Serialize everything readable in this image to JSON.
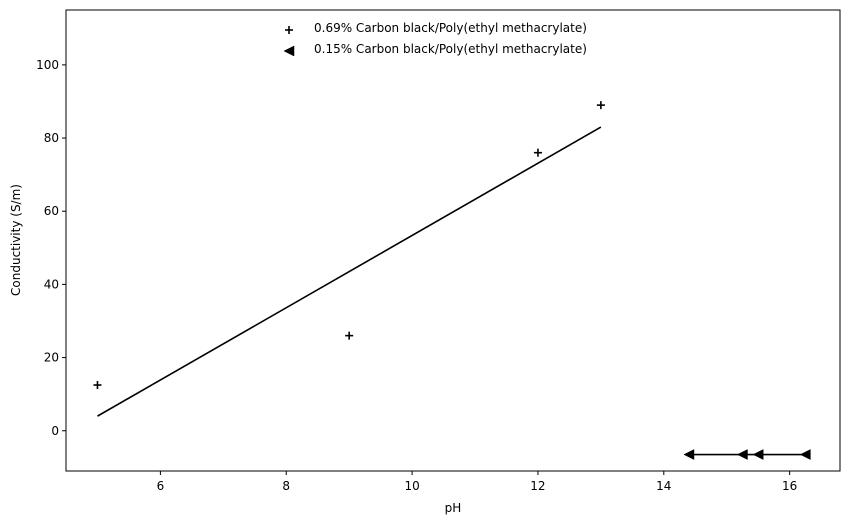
{
  "chart_data": {
    "type": "scatter",
    "title": "",
    "xlabel": "pH",
    "ylabel": "Conductivity (S/m)",
    "xlim": [
      4.5,
      16.8
    ],
    "ylim": [
      -11,
      115
    ],
    "x_ticks": [
      6,
      8,
      10,
      12,
      14,
      16
    ],
    "y_ticks": [
      0,
      20,
      40,
      60,
      80,
      100
    ],
    "grid": false,
    "legend_position": "top-center",
    "series": [
      {
        "name": "0.69% Carbon black/Poly(ethyl methacrylate)",
        "marker": "plus",
        "color": "#000000",
        "points": [
          {
            "x": 5,
            "y": 12.5
          },
          {
            "x": 9,
            "y": 26
          },
          {
            "x": 12,
            "y": 76
          },
          {
            "x": 13,
            "y": 89
          }
        ],
        "fit_line": {
          "x": [
            5,
            13
          ],
          "y": [
            4,
            83
          ]
        }
      },
      {
        "name": "0.15% Carbon black/Poly(ethyl methacrylate)",
        "marker": "triangle-left",
        "color": "#000000",
        "points": [
          {
            "x": 14.4,
            "y": -6.5
          },
          {
            "x": 15.25,
            "y": -6.5
          },
          {
            "x": 15.5,
            "y": -6.5
          },
          {
            "x": 16.25,
            "y": -6.5
          }
        ],
        "fit_line": {
          "x": [
            14.4,
            16.25
          ],
          "y": [
            -6.5,
            -6.5
          ]
        }
      }
    ]
  }
}
